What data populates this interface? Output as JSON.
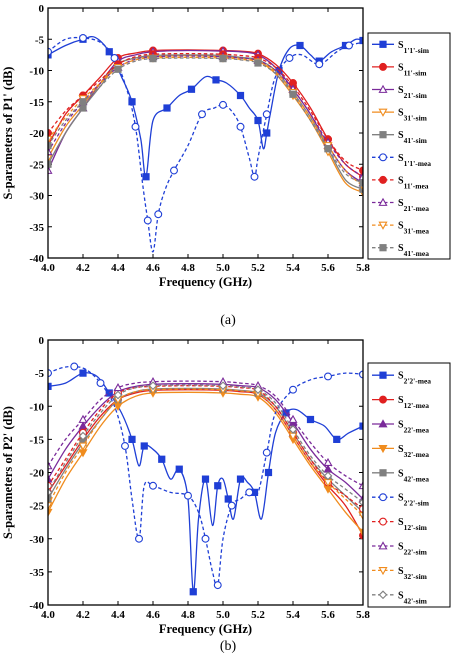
{
  "captions": [
    "(a)",
    "(b)"
  ],
  "chart_data": [
    {
      "type": "line",
      "xlabel": "Frequency (GHz)",
      "ylabel": "S-parameters of P1' (dB)",
      "xlim": [
        4.0,
        5.8
      ],
      "ylim": [
        -40,
        0
      ],
      "xticks": [
        "4.0",
        "4.2",
        "4.4",
        "4.6",
        "4.8",
        "5.0",
        "5.2",
        "5.4",
        "5.6",
        "5.8"
      ],
      "yticks": [
        "0",
        "-5",
        "-10",
        "-15",
        "-20",
        "-25",
        "-30",
        "-35",
        "-40"
      ],
      "legend_position": "right",
      "series": [
        {
          "name": "S1'1'-sim",
          "color": "#1f3fd6",
          "dash": "solid",
          "marker": "square-filled",
          "x": [
            4.0,
            4.1,
            4.2,
            4.27,
            4.35,
            4.42,
            4.48,
            4.53,
            4.56,
            4.6,
            4.68,
            4.75,
            4.82,
            4.9,
            4.96,
            5.02,
            5.1,
            5.15,
            5.2,
            5.23,
            5.25,
            5.27,
            5.32,
            5.38,
            5.44,
            5.5,
            5.55,
            5.62,
            5.7,
            5.76,
            5.8
          ],
          "y": [
            -7.5,
            -6.0,
            -5.0,
            -4.7,
            -7.0,
            -11.0,
            -15.0,
            -21.0,
            -27.0,
            -18.0,
            -16.0,
            -14.0,
            -13.0,
            -11.0,
            -11.5,
            -12.0,
            -14.0,
            -16.0,
            -18.0,
            -22.5,
            -20.0,
            -17.0,
            -10.0,
            -6.5,
            -6.0,
            -7.5,
            -8.5,
            -7.0,
            -6.0,
            -5.0,
            -5.2
          ]
        },
        {
          "name": "S11'-sim",
          "color": "#e02020",
          "dash": "solid",
          "marker": "circle-filled",
          "x": [
            4.0,
            4.1,
            4.2,
            4.3,
            4.4,
            4.5,
            4.6,
            4.8,
            5.0,
            5.1,
            5.2,
            5.3,
            5.4,
            5.5,
            5.6,
            5.7,
            5.8
          ],
          "y": [
            -22.0,
            -17.0,
            -14.0,
            -11.0,
            -8.0,
            -7.2,
            -6.8,
            -6.7,
            -6.8,
            -6.9,
            -7.3,
            -9.0,
            -12.0,
            -16.0,
            -21.0,
            -25.0,
            -27.0
          ]
        },
        {
          "name": "S21'-sim",
          "color": "#7a2a9a",
          "dash": "solid",
          "marker": "triangle-open",
          "x": [
            4.0,
            4.1,
            4.2,
            4.3,
            4.4,
            4.5,
            4.6,
            4.8,
            5.0,
            5.1,
            5.2,
            5.3,
            5.4,
            5.5,
            5.6,
            5.7,
            5.8
          ],
          "y": [
            -26.0,
            -20.0,
            -16.0,
            -12.0,
            -8.5,
            -7.5,
            -7.0,
            -6.8,
            -6.9,
            -7.0,
            -7.5,
            -9.5,
            -13.0,
            -17.0,
            -22.0,
            -26.0,
            -28.0
          ]
        },
        {
          "name": "S31'-sim",
          "color": "#f08c1e",
          "dash": "solid",
          "marker": "triangle-down-open",
          "x": [
            4.0,
            4.1,
            4.2,
            4.3,
            4.4,
            4.5,
            4.6,
            4.8,
            5.0,
            5.1,
            5.2,
            5.3,
            5.4,
            5.5,
            5.6,
            5.7,
            5.8
          ],
          "y": [
            -24.0,
            -19.0,
            -15.5,
            -12.0,
            -9.0,
            -8.0,
            -7.8,
            -7.6,
            -7.8,
            -8.0,
            -8.5,
            -10.5,
            -14.0,
            -18.0,
            -23.0,
            -28.0,
            -29.5
          ]
        },
        {
          "name": "S41'-sim",
          "color": "#808080",
          "dash": "solid",
          "marker": "square-filled",
          "x": [
            4.0,
            4.1,
            4.2,
            4.3,
            4.4,
            4.5,
            4.6,
            4.8,
            5.0,
            5.1,
            5.2,
            5.3,
            5.4,
            5.5,
            5.6,
            5.7,
            5.8
          ],
          "y": [
            -25.0,
            -20.0,
            -16.0,
            -12.5,
            -9.0,
            -8.0,
            -7.6,
            -7.5,
            -7.6,
            -7.9,
            -8.3,
            -10.0,
            -13.5,
            -17.5,
            -22.5,
            -27.5,
            -29.0
          ]
        },
        {
          "name": "S1'1'-mea",
          "color": "#1f3fd6",
          "dash": "dashed",
          "marker": "circle-open",
          "x": [
            4.0,
            4.1,
            4.2,
            4.3,
            4.38,
            4.45,
            4.5,
            4.54,
            4.57,
            4.6,
            4.63,
            4.67,
            4.72,
            4.8,
            4.88,
            4.95,
            5.0,
            5.05,
            5.1,
            5.15,
            5.18,
            5.2,
            5.25,
            5.3,
            5.38,
            5.45,
            5.55,
            5.65,
            5.72,
            5.8
          ],
          "y": [
            -7.0,
            -5.0,
            -4.8,
            -5.5,
            -8.0,
            -13.0,
            -19.0,
            -28.0,
            -34.0,
            -39.0,
            -33.0,
            -29.0,
            -26.0,
            -22.0,
            -17.0,
            -16.0,
            -15.5,
            -16.5,
            -19.0,
            -24.0,
            -27.0,
            -24.0,
            -17.0,
            -11.0,
            -8.0,
            -7.5,
            -9.0,
            -7.0,
            -6.0,
            -5.5
          ]
        },
        {
          "name": "S11'-mea",
          "color": "#e02020",
          "dash": "dashed",
          "marker": "circle-filled",
          "x": [
            4.0,
            4.1,
            4.2,
            4.3,
            4.4,
            4.5,
            4.6,
            4.8,
            5.0,
            5.1,
            5.2,
            5.3,
            5.4,
            5.5,
            5.6,
            5.7,
            5.8
          ],
          "y": [
            -20.0,
            -16.5,
            -14.0,
            -11.5,
            -9.0,
            -7.8,
            -7.4,
            -7.3,
            -7.4,
            -7.6,
            -8.0,
            -9.5,
            -12.5,
            -16.5,
            -21.0,
            -24.5,
            -26.0
          ]
        },
        {
          "name": "S21'-mea",
          "color": "#7a2a9a",
          "dash": "dashed",
          "marker": "triangle-open",
          "x": [
            4.0,
            4.1,
            4.2,
            4.3,
            4.4,
            4.5,
            4.6,
            4.8,
            5.0,
            5.1,
            5.2,
            5.3,
            5.4,
            5.5,
            5.6,
            5.7,
            5.8
          ],
          "y": [
            -23.0,
            -18.5,
            -15.0,
            -12.0,
            -9.5,
            -8.2,
            -7.8,
            -7.7,
            -7.8,
            -8.0,
            -8.4,
            -10.0,
            -13.0,
            -17.0,
            -21.5,
            -25.0,
            -27.0
          ]
        },
        {
          "name": "S31'-mea",
          "color": "#f08c1e",
          "dash": "dashed",
          "marker": "triangle-down-open",
          "x": [
            4.0,
            4.1,
            4.2,
            4.3,
            4.4,
            4.5,
            4.6,
            4.8,
            5.0,
            5.1,
            5.2,
            5.3,
            5.4,
            5.5,
            5.6,
            5.7,
            5.8
          ],
          "y": [
            -21.0,
            -17.5,
            -14.5,
            -12.0,
            -9.5,
            -8.3,
            -8.0,
            -7.9,
            -8.0,
            -8.2,
            -8.6,
            -10.2,
            -13.5,
            -17.5,
            -22.0,
            -26.0,
            -28.5
          ]
        },
        {
          "name": "S41'-mea",
          "color": "#808080",
          "dash": "dashed",
          "marker": "square-filled",
          "x": [
            4.0,
            4.1,
            4.2,
            4.3,
            4.4,
            4.5,
            4.6,
            4.8,
            5.0,
            5.1,
            5.2,
            5.3,
            5.4,
            5.5,
            5.6,
            5.7,
            5.8
          ],
          "y": [
            -22.0,
            -18.0,
            -15.0,
            -12.5,
            -9.8,
            -8.5,
            -8.1,
            -8.0,
            -8.1,
            -8.3,
            -8.8,
            -10.5,
            -13.8,
            -18.0,
            -22.5,
            -26.5,
            -28.0
          ]
        }
      ]
    },
    {
      "type": "line",
      "xlabel": "Frequency (GHz)",
      "ylabel": "S-parameters of P2' (dB)",
      "xlim": [
        4.0,
        5.8
      ],
      "ylim": [
        -40,
        0
      ],
      "xticks": [
        "4.0",
        "4.2",
        "4.4",
        "4.6",
        "4.8",
        "5.0",
        "5.2",
        "5.4",
        "5.6",
        "5.8"
      ],
      "yticks": [
        "0",
        "-5",
        "-10",
        "-15",
        "-20",
        "-25",
        "-30",
        "-35",
        "-40"
      ],
      "legend_position": "right",
      "series": [
        {
          "name": "S2'2'-mea",
          "color": "#1f3fd6",
          "dash": "solid",
          "marker": "square-filled",
          "x": [
            4.0,
            4.1,
            4.2,
            4.28,
            4.35,
            4.42,
            4.48,
            4.52,
            4.55,
            4.6,
            4.65,
            4.7,
            4.75,
            4.8,
            4.83,
            4.86,
            4.9,
            4.94,
            4.97,
            5.0,
            5.03,
            5.06,
            5.1,
            5.14,
            5.18,
            5.22,
            5.26,
            5.3,
            5.36,
            5.42,
            5.5,
            5.58,
            5.65,
            5.72,
            5.8
          ],
          "y": [
            -7.0,
            -6.5,
            -5.0,
            -5.5,
            -8.0,
            -11.0,
            -15.0,
            -19.0,
            -16.0,
            -16.5,
            -18.0,
            -21.0,
            -19.5,
            -24.0,
            -38.0,
            -27.0,
            -21.0,
            -28.0,
            -22.0,
            -21.0,
            -24.0,
            -27.0,
            -21.0,
            -21.5,
            -23.0,
            -27.0,
            -20.0,
            -14.0,
            -11.0,
            -10.5,
            -12.0,
            -13.0,
            -15.0,
            -14.0,
            -13.0
          ]
        },
        {
          "name": "S12'-mea",
          "color": "#e02020",
          "dash": "solid",
          "marker": "circle-filled",
          "x": [
            4.0,
            4.1,
            4.2,
            4.3,
            4.4,
            4.5,
            4.6,
            4.8,
            5.0,
            5.1,
            5.2,
            5.3,
            5.4,
            5.5,
            5.6,
            5.7,
            5.8
          ],
          "y": [
            -23.0,
            -19.0,
            -15.0,
            -11.5,
            -9.0,
            -8.0,
            -7.6,
            -7.5,
            -7.6,
            -7.8,
            -8.2,
            -10.5,
            -14.5,
            -18.5,
            -22.0,
            -25.0,
            -29.5
          ]
        },
        {
          "name": "S22'-mea",
          "color": "#7a2a9a",
          "dash": "solid",
          "marker": "triangle-filled",
          "x": [
            4.0,
            4.1,
            4.2,
            4.3,
            4.4,
            4.5,
            4.6,
            4.8,
            5.0,
            5.1,
            5.2,
            5.3,
            5.4,
            5.5,
            5.6,
            5.7,
            5.8
          ],
          "y": [
            -21.0,
            -16.5,
            -13.0,
            -10.0,
            -7.8,
            -7.0,
            -6.7,
            -6.6,
            -6.7,
            -6.9,
            -7.2,
            -9.0,
            -12.5,
            -16.5,
            -19.5,
            -21.5,
            -24.0
          ]
        },
        {
          "name": "S32'-mea",
          "color": "#f08c1e",
          "dash": "solid",
          "marker": "triangle-down-filled",
          "x": [
            4.0,
            4.1,
            4.2,
            4.3,
            4.4,
            4.5,
            4.6,
            4.8,
            5.0,
            5.1,
            5.2,
            5.3,
            5.4,
            5.5,
            5.6,
            5.7,
            5.8
          ],
          "y": [
            -26.0,
            -21.0,
            -17.0,
            -13.0,
            -10.0,
            -8.5,
            -8.0,
            -7.9,
            -8.0,
            -8.2,
            -8.6,
            -11.0,
            -15.0,
            -19.0,
            -22.5,
            -26.0,
            -29.0
          ]
        },
        {
          "name": "S42'-mea",
          "color": "#808080",
          "dash": "solid",
          "marker": "square-filled",
          "x": [
            4.0,
            4.1,
            4.2,
            4.3,
            4.4,
            4.5,
            4.6,
            4.8,
            5.0,
            5.1,
            5.2,
            5.3,
            5.4,
            5.5,
            5.6,
            5.7,
            5.8
          ],
          "y": [
            -24.0,
            -19.5,
            -15.5,
            -12.0,
            -9.0,
            -7.8,
            -7.4,
            -7.3,
            -7.4,
            -7.6,
            -8.0,
            -10.0,
            -14.0,
            -18.0,
            -21.0,
            -23.5,
            -26.0
          ]
        },
        {
          "name": "S2'2'-sim",
          "color": "#1f3fd6",
          "dash": "dashed",
          "marker": "circle-open",
          "x": [
            4.0,
            4.08,
            4.15,
            4.22,
            4.3,
            4.38,
            4.44,
            4.48,
            4.52,
            4.55,
            4.6,
            4.7,
            4.8,
            4.86,
            4.9,
            4.94,
            4.97,
            5.0,
            5.05,
            5.1,
            5.15,
            5.2,
            5.25,
            5.3,
            5.4,
            5.5,
            5.6,
            5.7,
            5.8
          ],
          "y": [
            -5.0,
            -4.2,
            -4.0,
            -4.5,
            -6.5,
            -10.0,
            -16.0,
            -24.0,
            -30.0,
            -22.0,
            -22.0,
            -23.0,
            -23.5,
            -26.0,
            -30.0,
            -35.0,
            -37.0,
            -30.0,
            -25.0,
            -24.0,
            -23.0,
            -23.0,
            -17.0,
            -11.0,
            -7.5,
            -6.0,
            -5.5,
            -5.0,
            -5.2
          ]
        },
        {
          "name": "S12'-sim",
          "color": "#e02020",
          "dash": "dashed",
          "marker": "circle-open",
          "x": [
            4.0,
            4.1,
            4.2,
            4.3,
            4.4,
            4.5,
            4.6,
            4.8,
            5.0,
            5.1,
            5.2,
            5.3,
            5.4,
            5.5,
            5.6,
            5.7,
            5.8
          ],
          "y": [
            -22.0,
            -18.0,
            -14.0,
            -10.5,
            -8.0,
            -7.2,
            -7.0,
            -6.9,
            -7.0,
            -7.2,
            -7.6,
            -10.0,
            -14.0,
            -18.0,
            -21.5,
            -23.5,
            -25.5
          ]
        },
        {
          "name": "S22'-sim",
          "color": "#7a2a9a",
          "dash": "dashed",
          "marker": "triangle-open",
          "x": [
            4.0,
            4.1,
            4.2,
            4.3,
            4.4,
            4.5,
            4.6,
            4.8,
            5.0,
            5.1,
            5.2,
            5.3,
            5.4,
            5.5,
            5.6,
            5.7,
            5.8
          ],
          "y": [
            -19.0,
            -15.0,
            -12.0,
            -9.0,
            -7.2,
            -6.5,
            -6.3,
            -6.2,
            -6.3,
            -6.5,
            -6.9,
            -8.5,
            -12.0,
            -15.5,
            -18.5,
            -20.5,
            -22.0
          ]
        },
        {
          "name": "S32'-sim",
          "color": "#f08c1e",
          "dash": "dashed",
          "marker": "triangle-down-open",
          "x": [
            4.0,
            4.1,
            4.2,
            4.3,
            4.4,
            4.5,
            4.6,
            4.8,
            5.0,
            5.1,
            5.2,
            5.3,
            5.4,
            5.5,
            5.6,
            5.7,
            5.8
          ],
          "y": [
            -25.0,
            -20.0,
            -16.0,
            -12.0,
            -9.0,
            -7.8,
            -7.5,
            -7.4,
            -7.5,
            -7.7,
            -8.1,
            -10.5,
            -14.5,
            -18.5,
            -21.5,
            -24.0,
            -26.5
          ]
        },
        {
          "name": "S42'-sim",
          "color": "#808080",
          "dash": "dashed",
          "marker": "diamond-open",
          "x": [
            4.0,
            4.1,
            4.2,
            4.3,
            4.4,
            4.5,
            4.6,
            4.8,
            5.0,
            5.1,
            5.2,
            5.3,
            5.4,
            5.5,
            5.6,
            5.7,
            5.8
          ],
          "y": [
            -23.0,
            -18.5,
            -14.5,
            -11.0,
            -8.3,
            -7.2,
            -6.9,
            -6.8,
            -6.9,
            -7.1,
            -7.5,
            -9.5,
            -13.5,
            -17.5,
            -20.5,
            -22.5,
            -24.5
          ]
        }
      ]
    }
  ]
}
